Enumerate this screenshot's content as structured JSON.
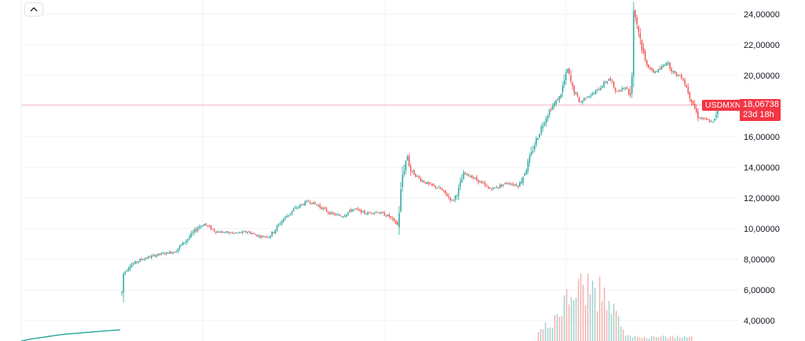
{
  "controls": {
    "collapse_icon": "chevron-up-icon"
  },
  "symbol": "USDMXN",
  "last_price": "18,06738",
  "countdown": "23d 18h",
  "colors": {
    "up": "#26a69a",
    "down": "#ef5350",
    "price_line": "#f23645",
    "grid": "#f0f3fa",
    "vol_up": "#a9d6d0",
    "vol_down": "#f5b8b6"
  },
  "chart_data": {
    "type": "candlestick",
    "y_axis": {
      "position": "right",
      "range": [
        3.0,
        25.0
      ],
      "ticks": [
        "24,00000",
        "22,00000",
        "20,00000",
        "18,00000",
        "16,00000",
        "14,00000",
        "12,00000",
        "10,00000",
        "8,00000",
        "6,00000",
        "4,00000"
      ],
      "tick_values": [
        24,
        22,
        20,
        18,
        16,
        14,
        12,
        10,
        8,
        6,
        4
      ]
    },
    "last_value": 18.06738,
    "grid": true,
    "close_path": [
      [
        0,
        2.4
      ],
      [
        40,
        2.8
      ],
      [
        80,
        3.1
      ],
      [
        128,
        3.3
      ],
      [
        153,
        3.4
      ],
      [
        156,
        7.0
      ],
      [
        165,
        7.6
      ],
      [
        180,
        8.0
      ],
      [
        200,
        8.3
      ],
      [
        222,
        8.5
      ],
      [
        240,
        9.4
      ],
      [
        252,
        10.1
      ],
      [
        260,
        10.3
      ],
      [
        275,
        9.8
      ],
      [
        300,
        9.7
      ],
      [
        315,
        9.8
      ],
      [
        330,
        9.5
      ],
      [
        343,
        9.5
      ],
      [
        360,
        10.6
      ],
      [
        375,
        11.3
      ],
      [
        392,
        11.8
      ],
      [
        405,
        11.5
      ],
      [
        420,
        11.0
      ],
      [
        435,
        10.8
      ],
      [
        450,
        11.3
      ],
      [
        465,
        11.0
      ],
      [
        480,
        11.1
      ],
      [
        495,
        10.8
      ],
      [
        506,
        10.2
      ],
      [
        512,
        13.5
      ],
      [
        518,
        14.8
      ],
      [
        522,
        13.8
      ],
      [
        535,
        13.2
      ],
      [
        545,
        12.9
      ],
      [
        560,
        12.6
      ],
      [
        576,
        11.8
      ],
      [
        583,
        12.5
      ],
      [
        590,
        13.6
      ],
      [
        600,
        13.4
      ],
      [
        612,
        13.0
      ],
      [
        622,
        12.6
      ],
      [
        632,
        12.7
      ],
      [
        645,
        13.0
      ],
      [
        660,
        12.8
      ],
      [
        670,
        14.0
      ],
      [
        680,
        15.5
      ],
      [
        690,
        16.8
      ],
      [
        700,
        17.8
      ],
      [
        712,
        18.6
      ],
      [
        722,
        20.4
      ],
      [
        728,
        19.2
      ],
      [
        738,
        18.2
      ],
      [
        745,
        18.6
      ],
      [
        755,
        18.8
      ],
      [
        765,
        19.3
      ],
      [
        775,
        19.8
      ],
      [
        785,
        18.9
      ],
      [
        795,
        19.3
      ],
      [
        803,
        18.6
      ],
      [
        806,
        24.3
      ],
      [
        812,
        23.0
      ],
      [
        820,
        21.0
      ],
      [
        830,
        20.2
      ],
      [
        840,
        20.4
      ],
      [
        848,
        20.9
      ],
      [
        858,
        20.1
      ],
      [
        868,
        19.9
      ],
      [
        878,
        18.6
      ],
      [
        888,
        17.3
      ],
      [
        898,
        17.1
      ],
      [
        908,
        16.9
      ],
      [
        914,
        18.07
      ]
    ]
  }
}
